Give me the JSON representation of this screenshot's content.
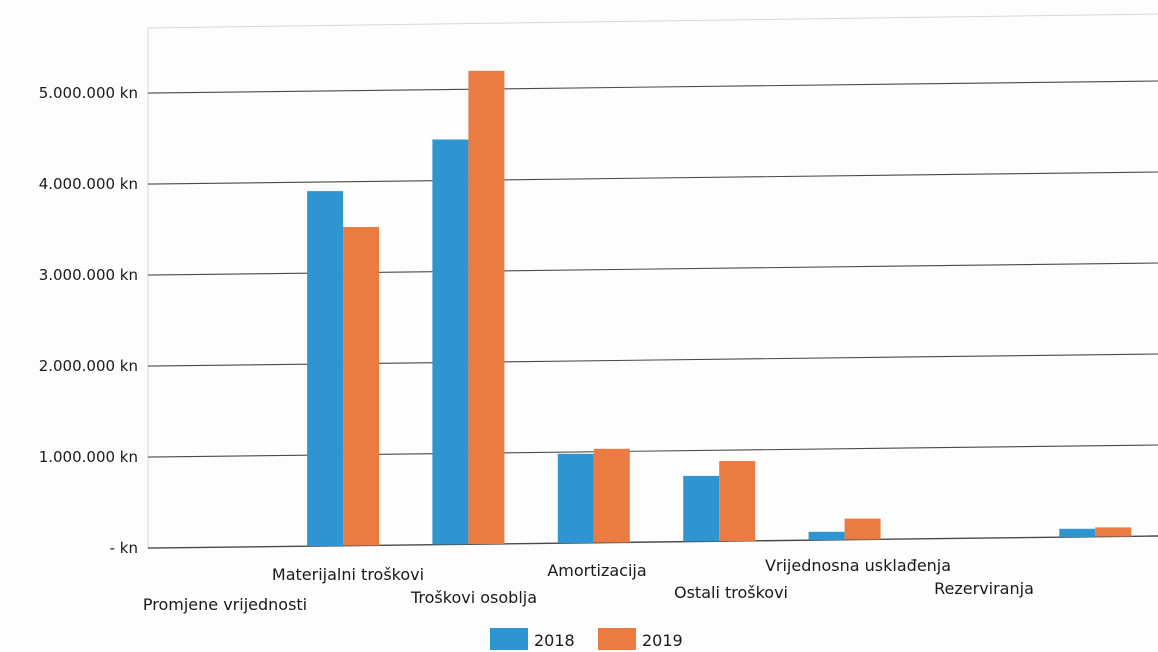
{
  "chart_data": {
    "type": "bar",
    "categories": [
      "Promjene vrijednosti",
      "Materijalni troškovi",
      "Troškovi osoblja",
      "Amortizacija",
      "Ostali troškovi",
      "Vrijednosna usklađenja",
      "Rezerviranja",
      ""
    ],
    "series": [
      {
        "name": "2018",
        "color": "#2f95d1",
        "values": [
          0,
          3900000,
          4450000,
          980000,
          720000,
          90000,
          0,
          90000
        ]
      },
      {
        "name": "2019",
        "color": "#ea7b43",
        "values": [
          0,
          3500000,
          5200000,
          1030000,
          880000,
          230000,
          0,
          100000
        ]
      }
    ],
    "y_ticks": [
      {
        "value": 0,
        "label": "- kn"
      },
      {
        "value": 1000000,
        "label": "1.000.000 kn"
      },
      {
        "value": 2000000,
        "label": "2.000.000 kn"
      },
      {
        "value": 3000000,
        "label": "3.000.000 kn"
      },
      {
        "value": 4000000,
        "label": "4.000.000 kn"
      },
      {
        "value": 5000000,
        "label": "5.000.000 kn"
      }
    ],
    "ylim": [
      0,
      5500000
    ],
    "grid": true,
    "legend_position": "bottom-center",
    "gridline_color": "#4a4a4a"
  }
}
